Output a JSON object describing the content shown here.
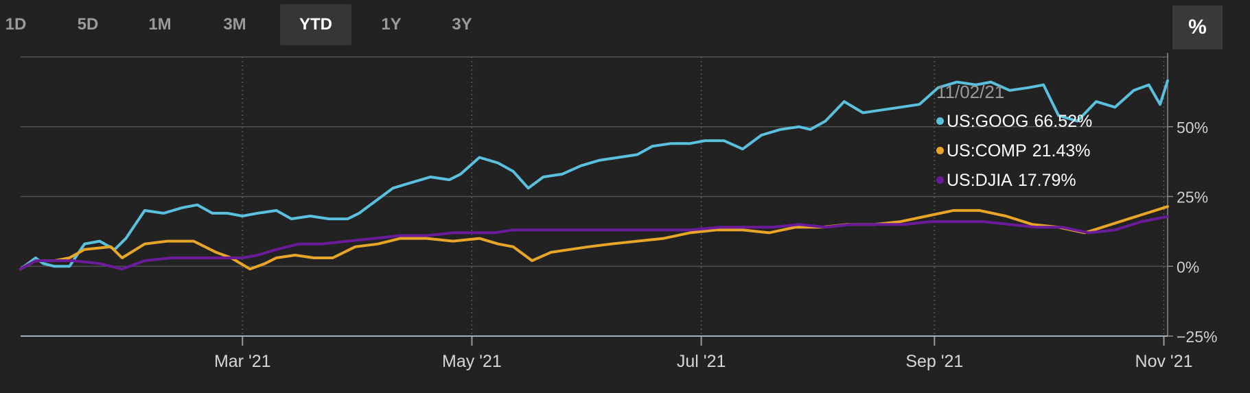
{
  "ranges": {
    "items": [
      {
        "label": "1D",
        "active": false
      },
      {
        "label": "5D",
        "active": false
      },
      {
        "label": "1M",
        "active": false
      },
      {
        "label": "3M",
        "active": false
      },
      {
        "label": "YTD",
        "active": true
      },
      {
        "label": "1Y",
        "active": false
      },
      {
        "label": "3Y",
        "active": false
      }
    ]
  },
  "unit_toggle": {
    "label": "%"
  },
  "tooltip": {
    "date": "11/02/21",
    "rows": [
      {
        "symbol": "US:GOOG",
        "value": "66.52%",
        "color": "#5bc0de"
      },
      {
        "symbol": "US:COMP",
        "value": "21.43%",
        "color": "#e8a628"
      },
      {
        "symbol": "US:DJIA",
        "value": "17.79%",
        "color": "#6a1b9a"
      }
    ]
  },
  "chart_data": {
    "type": "line",
    "x_type": "date",
    "xlim": [
      "2021-01-01",
      "2021-11-02"
    ],
    "ylim": [
      -25,
      75
    ],
    "y_ticks": [
      50,
      25,
      0,
      -25
    ],
    "y_tick_labels": [
      "50%",
      "25%",
      "0%",
      "−25%"
    ],
    "x_ticks": [
      "2021-03-01",
      "2021-05-01",
      "2021-07-01",
      "2021-09-01",
      "2021-11-01"
    ],
    "x_tick_labels": [
      "Mar '21",
      "May '21",
      "Jul '21",
      "Sep '21",
      "Nov '21"
    ],
    "grid": true,
    "series": [
      {
        "name": "US:GOOG",
        "color": "#5bc0de",
        "x": [
          "2021-01-01",
          "2021-01-05",
          "2021-01-07",
          "2021-01-10",
          "2021-01-14",
          "2021-01-18",
          "2021-01-22",
          "2021-01-26",
          "2021-01-29",
          "2021-02-03",
          "2021-02-08",
          "2021-02-13",
          "2021-02-17",
          "2021-02-21",
          "2021-02-25",
          "2021-03-01",
          "2021-03-05",
          "2021-03-10",
          "2021-03-14",
          "2021-03-19",
          "2021-03-24",
          "2021-03-29",
          "2021-04-01",
          "2021-04-06",
          "2021-04-10",
          "2021-04-15",
          "2021-04-20",
          "2021-04-25",
          "2021-04-28",
          "2021-05-03",
          "2021-05-08",
          "2021-05-12",
          "2021-05-16",
          "2021-05-20",
          "2021-05-25",
          "2021-05-30",
          "2021-06-04",
          "2021-06-09",
          "2021-06-14",
          "2021-06-18",
          "2021-06-23",
          "2021-06-28",
          "2021-07-02",
          "2021-07-07",
          "2021-07-12",
          "2021-07-17",
          "2021-07-22",
          "2021-07-27",
          "2021-07-30",
          "2021-08-03",
          "2021-08-08",
          "2021-08-13",
          "2021-08-18",
          "2021-08-23",
          "2021-08-28",
          "2021-09-02",
          "2021-09-07",
          "2021-09-12",
          "2021-09-16",
          "2021-09-21",
          "2021-09-26",
          "2021-09-30",
          "2021-10-04",
          "2021-10-09",
          "2021-10-14",
          "2021-10-19",
          "2021-10-24",
          "2021-10-28",
          "2021-10-31",
          "2021-11-02"
        ],
        "y": [
          -1,
          3,
          1,
          0,
          0,
          8,
          9,
          6,
          10,
          20,
          19,
          21,
          22,
          19,
          19,
          18,
          19,
          20,
          17,
          18,
          17,
          17,
          19,
          24,
          28,
          30,
          32,
          31,
          33,
          39,
          37,
          34,
          28,
          32,
          33,
          36,
          38,
          39,
          40,
          43,
          44,
          44,
          45,
          45,
          42,
          47,
          49,
          50,
          49,
          52,
          59,
          55,
          56,
          57,
          58,
          64,
          66,
          65,
          66,
          63,
          64,
          65,
          54,
          52,
          59,
          57,
          63,
          65,
          58,
          66.5
        ]
      },
      {
        "name": "US:COMP",
        "color": "#e8a628",
        "x": [
          "2021-01-01",
          "2021-01-05",
          "2021-01-10",
          "2021-01-14",
          "2021-01-18",
          "2021-01-25",
          "2021-01-28",
          "2021-02-03",
          "2021-02-09",
          "2021-02-16",
          "2021-02-22",
          "2021-02-26",
          "2021-03-03",
          "2021-03-07",
          "2021-03-10",
          "2021-03-15",
          "2021-03-20",
          "2021-03-25",
          "2021-03-31",
          "2021-04-06",
          "2021-04-12",
          "2021-04-19",
          "2021-04-26",
          "2021-05-03",
          "2021-05-08",
          "2021-05-12",
          "2021-05-17",
          "2021-05-22",
          "2021-05-27",
          "2021-06-01",
          "2021-06-07",
          "2021-06-14",
          "2021-06-21",
          "2021-06-28",
          "2021-07-05",
          "2021-07-12",
          "2021-07-19",
          "2021-07-26",
          "2021-08-02",
          "2021-08-09",
          "2021-08-16",
          "2021-08-23",
          "2021-08-30",
          "2021-09-06",
          "2021-09-13",
          "2021-09-20",
          "2021-09-27",
          "2021-10-04",
          "2021-10-11",
          "2021-10-18",
          "2021-10-25",
          "2021-11-02"
        ],
        "y": [
          -1,
          2,
          2,
          3,
          6,
          7,
          3,
          8,
          9,
          9,
          5,
          3,
          -1,
          1,
          3,
          4,
          3,
          3,
          7,
          8,
          10,
          10,
          9,
          10,
          8,
          7,
          2,
          5,
          6,
          7,
          8,
          9,
          10,
          12,
          13,
          13,
          12,
          14,
          14,
          15,
          15,
          16,
          18,
          20,
          20,
          18,
          15,
          14,
          12,
          15,
          18,
          21.4
        ]
      },
      {
        "name": "US:DJIA",
        "color": "#6a1b9a",
        "x": [
          "2021-01-01",
          "2021-01-05",
          "2021-01-10",
          "2021-01-15",
          "2021-01-22",
          "2021-01-28",
          "2021-02-03",
          "2021-02-10",
          "2021-02-17",
          "2021-02-24",
          "2021-03-01",
          "2021-03-05",
          "2021-03-10",
          "2021-03-16",
          "2021-03-22",
          "2021-03-29",
          "2021-04-05",
          "2021-04-12",
          "2021-04-19",
          "2021-04-26",
          "2021-05-03",
          "2021-05-07",
          "2021-05-12",
          "2021-05-17",
          "2021-05-24",
          "2021-05-31",
          "2021-06-07",
          "2021-06-14",
          "2021-06-21",
          "2021-06-28",
          "2021-07-06",
          "2021-07-13",
          "2021-07-20",
          "2021-07-27",
          "2021-08-03",
          "2021-08-10",
          "2021-08-17",
          "2021-08-24",
          "2021-08-31",
          "2021-09-07",
          "2021-09-14",
          "2021-09-21",
          "2021-09-28",
          "2021-10-05",
          "2021-10-12",
          "2021-10-19",
          "2021-10-26",
          "2021-11-02"
        ],
        "y": [
          -1,
          2,
          2,
          2,
          1,
          -1,
          2,
          3,
          3,
          3,
          3,
          4,
          6,
          8,
          8,
          9,
          10,
          11,
          11,
          12,
          12,
          12,
          13,
          13,
          13,
          13,
          13,
          13,
          13,
          13,
          14,
          14,
          14,
          15,
          14,
          15,
          15,
          15,
          16,
          16,
          16,
          15,
          14,
          14,
          12,
          13,
          16,
          17.8
        ]
      }
    ]
  }
}
